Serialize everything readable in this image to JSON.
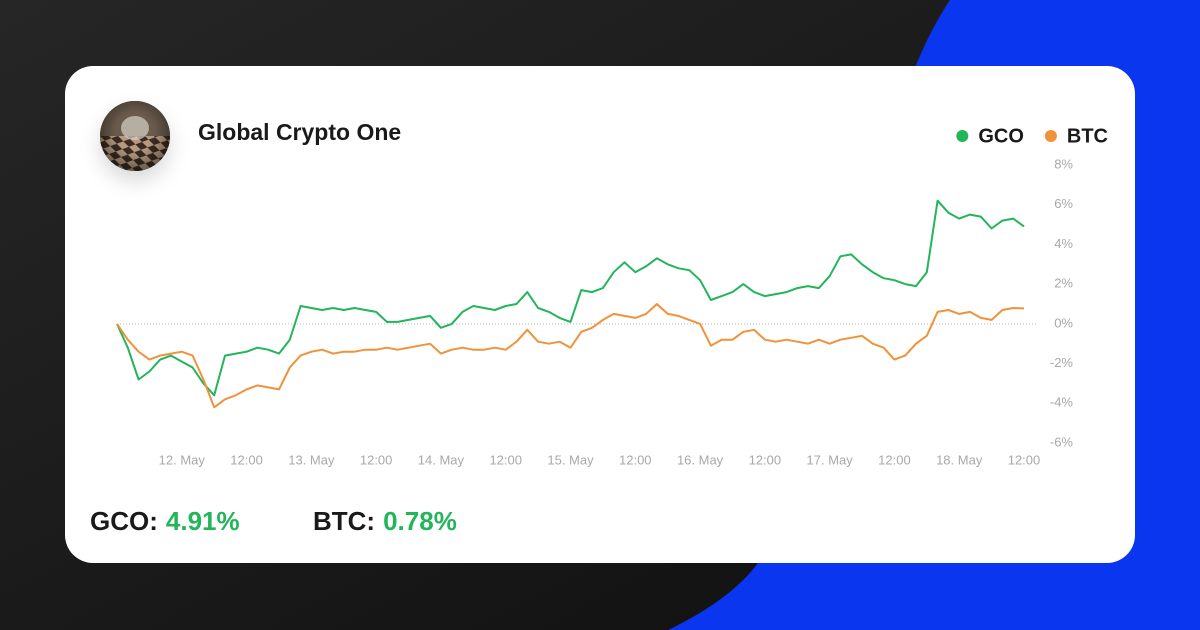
{
  "header": {
    "title": "Global Crypto One"
  },
  "chart_data": {
    "type": "line",
    "categories": [
      null,
      null,
      null,
      null,
      null,
      null,
      "12. May",
      null,
      null,
      null,
      null,
      null,
      "12:00",
      null,
      null,
      null,
      null,
      null,
      "13. May",
      null,
      null,
      null,
      null,
      null,
      "12:00",
      null,
      null,
      null,
      null,
      null,
      "14. May",
      null,
      null,
      null,
      null,
      null,
      "12:00",
      null,
      null,
      null,
      null,
      null,
      "15. May",
      null,
      null,
      null,
      null,
      null,
      "12:00",
      null,
      null,
      null,
      null,
      null,
      "16. May",
      null,
      null,
      null,
      null,
      null,
      "12:00",
      null,
      null,
      null,
      null,
      null,
      "17. May",
      null,
      null,
      null,
      null,
      null,
      "12:00",
      null,
      null,
      null,
      null,
      null,
      "18. May",
      null,
      null,
      null,
      null,
      null,
      "12:00"
    ],
    "series": [
      {
        "name": "GCO",
        "color": "#22b55a",
        "values": [
          0.0,
          -1.2,
          -2.8,
          -2.4,
          -1.8,
          -1.6,
          -1.9,
          -2.2,
          -3.0,
          -3.6,
          -1.6,
          -1.5,
          -1.4,
          -1.2,
          -1.3,
          -1.5,
          -0.8,
          0.9,
          0.8,
          0.7,
          0.8,
          0.7,
          0.8,
          0.7,
          0.6,
          0.1,
          0.1,
          0.2,
          0.3,
          0.4,
          -0.2,
          0.0,
          0.6,
          0.9,
          0.8,
          0.7,
          0.9,
          1.0,
          1.6,
          0.8,
          0.6,
          0.3,
          0.1,
          1.7,
          1.6,
          1.8,
          2.6,
          3.1,
          2.6,
          2.9,
          3.3,
          3.0,
          2.8,
          2.7,
          2.2,
          1.2,
          1.4,
          1.6,
          2.0,
          1.6,
          1.4,
          1.5,
          1.6,
          1.8,
          1.9,
          1.8,
          2.4,
          3.4,
          3.5,
          3.0,
          2.6,
          2.3,
          2.2,
          2.0,
          1.9,
          2.6,
          6.2,
          5.6,
          5.3,
          5.5,
          5.4,
          4.8,
          5.2,
          5.3,
          4.91
        ]
      },
      {
        "name": "BTC",
        "color": "#f0923a",
        "values": [
          0.0,
          -0.8,
          -1.4,
          -1.8,
          -1.6,
          -1.5,
          -1.4,
          -1.6,
          -2.8,
          -4.2,
          -3.8,
          -3.6,
          -3.3,
          -3.1,
          -3.2,
          -3.3,
          -2.2,
          -1.6,
          -1.4,
          -1.3,
          -1.5,
          -1.4,
          -1.4,
          -1.3,
          -1.3,
          -1.2,
          -1.3,
          -1.2,
          -1.1,
          -1.0,
          -1.5,
          -1.3,
          -1.2,
          -1.3,
          -1.3,
          -1.2,
          -1.3,
          -0.9,
          -0.3,
          -0.9,
          -1.0,
          -0.9,
          -1.2,
          -0.4,
          -0.2,
          0.2,
          0.5,
          0.4,
          0.3,
          0.5,
          1.0,
          0.5,
          0.4,
          0.2,
          0.0,
          -1.1,
          -0.8,
          -0.8,
          -0.4,
          -0.3,
          -0.8,
          -0.9,
          -0.8,
          -0.9,
          -1.0,
          -0.8,
          -1.0,
          -0.8,
          -0.7,
          -0.6,
          -1.0,
          -1.2,
          -1.8,
          -1.6,
          -1.0,
          -0.6,
          0.6,
          0.7,
          0.5,
          0.6,
          0.3,
          0.2,
          0.7,
          0.8,
          0.78
        ]
      }
    ],
    "ylim": [
      -6,
      8
    ],
    "yticks": [
      {
        "value": -6,
        "label": "-6%"
      },
      {
        "value": -4,
        "label": "-4%"
      },
      {
        "value": -2,
        "label": "-2%"
      },
      {
        "value": 0,
        "label": "0%"
      },
      {
        "value": 2,
        "label": "2%"
      },
      {
        "value": 4,
        "label": "4%"
      },
      {
        "value": 6,
        "label": "6%"
      },
      {
        "value": 8,
        "label": "8%"
      }
    ],
    "grid": false,
    "zero_line": true,
    "legend": "top-right"
  },
  "summary": [
    {
      "label": "GCO:",
      "value": "4.91%",
      "color": "#22b55a"
    },
    {
      "label": "BTC:",
      "value": "0.78%",
      "color": "#22b55a"
    }
  ]
}
